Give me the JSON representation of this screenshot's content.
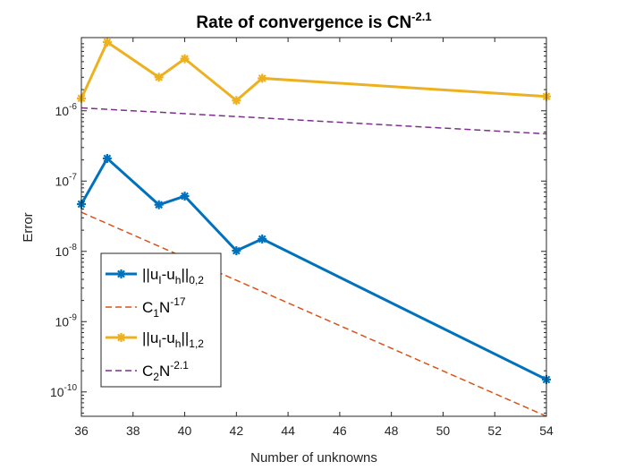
{
  "chart_data": {
    "type": "line",
    "title": "Rate of convergence is CN",
    "title_exponent": "-2.1",
    "xlabel": "Number of unknowns",
    "ylabel": "Error",
    "xlim": [
      36,
      54
    ],
    "ylim": [
      4.5e-11,
      1.1e-05
    ],
    "yscale": "log",
    "x_ticks": [
      36,
      38,
      40,
      42,
      44,
      46,
      48,
      50,
      52,
      54
    ],
    "y_ticks": [
      {
        "value": 1e-10,
        "label_base": "10",
        "label_exp": "-10"
      },
      {
        "value": 1e-09,
        "label_base": "10",
        "label_exp": "-9"
      },
      {
        "value": 1e-08,
        "label_base": "10",
        "label_exp": "-8"
      },
      {
        "value": 1e-07,
        "label_base": "10",
        "label_exp": "-7"
      },
      {
        "value": 1e-06,
        "label_base": "10",
        "label_exp": "-6"
      }
    ],
    "grid": false,
    "legend_position": "bottom-left",
    "series": [
      {
        "legend_parts": [
          [
            "||u",
            "normal"
          ],
          [
            "I",
            "sub"
          ],
          [
            "-u",
            "normal"
          ],
          [
            "h",
            "sub"
          ],
          [
            "||",
            "normal"
          ],
          [
            "0,2",
            "sub"
          ]
        ],
        "color": "#0072BD",
        "style": "solid-marker",
        "x": [
          36,
          37,
          39,
          40,
          42,
          43,
          54
        ],
        "y": [
          4.7e-08,
          2.1e-07,
          4.6e-08,
          6.1e-08,
          1.02e-08,
          1.5e-08,
          1.5e-10
        ]
      },
      {
        "legend_parts": [
          [
            "C",
            "normal"
          ],
          [
            "1",
            "sub"
          ],
          [
            "N",
            "normal"
          ],
          [
            "-17",
            "sup"
          ]
        ],
        "color": "#D95319",
        "style": "dashed",
        "x": [
          36,
          54
        ],
        "y": [
          3.6e-08,
          4.5e-11
        ]
      },
      {
        "legend_parts": [
          [
            "||u",
            "normal"
          ],
          [
            "I",
            "sub"
          ],
          [
            "-u",
            "normal"
          ],
          [
            "h",
            "sub"
          ],
          [
            "||",
            "normal"
          ],
          [
            "1,2",
            "sub"
          ]
        ],
        "color": "#EDB120",
        "style": "solid-marker",
        "x": [
          36,
          37,
          39,
          40,
          42,
          43,
          54
        ],
        "y": [
          1.5e-06,
          9.5e-06,
          3e-06,
          5.5e-06,
          1.4e-06,
          2.9e-06,
          1.6e-06
        ]
      },
      {
        "legend_parts": [
          [
            "C",
            "normal"
          ],
          [
            "2",
            "sub"
          ],
          [
            "N",
            "normal"
          ],
          [
            "-2.1",
            "sup"
          ]
        ],
        "color": "#7E2F8E",
        "style": "dashed",
        "x": [
          36,
          54
        ],
        "y": [
          1.1e-06,
          4.7e-07
        ]
      }
    ]
  }
}
